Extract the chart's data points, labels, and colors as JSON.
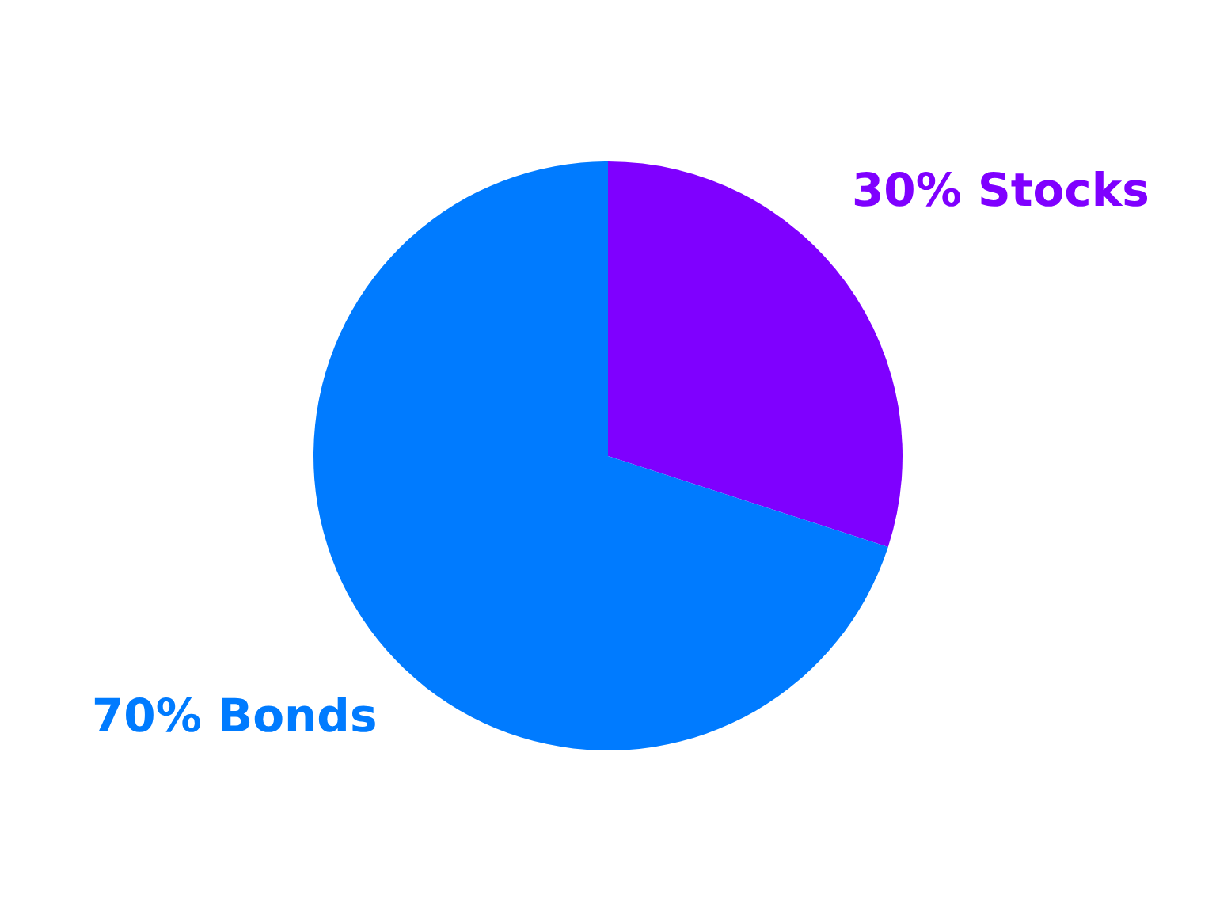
{
  "chart_data": {
    "type": "pie",
    "categories": [
      "Stocks",
      "Bonds"
    ],
    "values": [
      30,
      70
    ],
    "colors": [
      "#7f00ff",
      "#007bff"
    ],
    "value_labels": [
      "30%",
      "70%"
    ]
  }
}
